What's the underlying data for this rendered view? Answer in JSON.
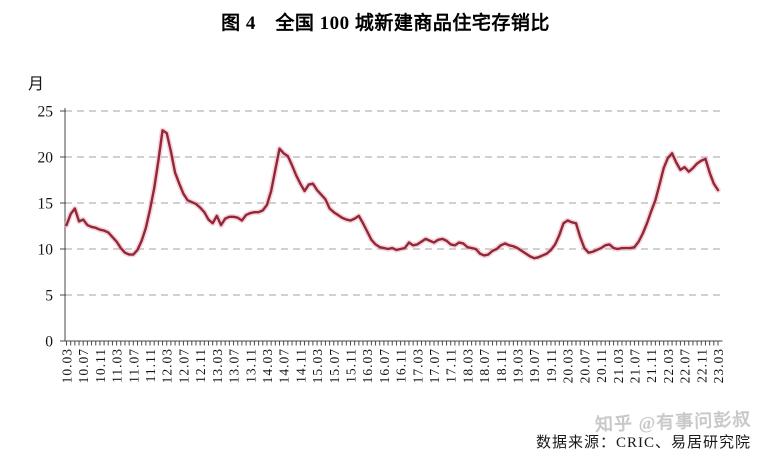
{
  "figure": {
    "title": "图 4　全国 100 城新建商品住宅存销比",
    "y_unit_label": "月",
    "source_note": "数据来源：CRIC、易居研究院",
    "watermark": "知乎 @有事问彭叔"
  },
  "colors": {
    "line": "#93273a",
    "line_halo": "#ecaab5",
    "grid": "#a3a3a3",
    "axis": "#4a4a4a",
    "tick_label": "#141414",
    "watermark": "#c9c9c9",
    "background": "#ffffff"
  },
  "chart_data": {
    "type": "line",
    "title": "图 4　全国 100 城新建商品住宅存销比",
    "xlabel": "",
    "ylabel": "月",
    "ylim": [
      0,
      25
    ],
    "yticks": [
      0,
      5,
      10,
      15,
      20,
      25
    ],
    "xtick_label_every": 4,
    "grid": "horizontal-dashed",
    "legend_position": "none",
    "series_name": "全国100城新建商品住宅存销比（月）",
    "x": [
      "10.03",
      "10.04",
      "10.05",
      "10.06",
      "10.07",
      "10.08",
      "10.09",
      "10.10",
      "10.11",
      "10.12",
      "11.01",
      "11.02",
      "11.03",
      "11.04",
      "11.05",
      "11.06",
      "11.07",
      "11.08",
      "11.09",
      "11.10",
      "11.11",
      "11.12",
      "12.01",
      "12.02",
      "12.03",
      "12.04",
      "12.05",
      "12.06",
      "12.07",
      "12.08",
      "12.09",
      "12.10",
      "12.11",
      "12.12",
      "13.01",
      "13.02",
      "13.03",
      "13.04",
      "13.05",
      "13.06",
      "13.07",
      "13.08",
      "13.09",
      "13.10",
      "13.11",
      "13.12",
      "14.01",
      "14.02",
      "14.03",
      "14.04",
      "14.05",
      "14.06",
      "14.07",
      "14.08",
      "14.09",
      "14.10",
      "14.11",
      "14.12",
      "15.01",
      "15.02",
      "15.03",
      "15.04",
      "15.05",
      "15.06",
      "15.07",
      "15.08",
      "15.09",
      "15.10",
      "15.11",
      "15.12",
      "16.01",
      "16.02",
      "16.03",
      "16.04",
      "16.05",
      "16.06",
      "16.07",
      "16.08",
      "16.09",
      "16.10",
      "16.11",
      "16.12",
      "17.01",
      "17.02",
      "17.03",
      "17.04",
      "17.05",
      "17.06",
      "17.07",
      "17.08",
      "17.09",
      "17.10",
      "17.11",
      "17.12",
      "18.01",
      "18.02",
      "18.03",
      "18.04",
      "18.05",
      "18.06",
      "18.07",
      "18.08",
      "18.09",
      "18.10",
      "18.11",
      "18.12",
      "19.01",
      "19.02",
      "19.03",
      "19.04",
      "19.05",
      "19.06",
      "19.07",
      "19.08",
      "19.09",
      "19.10",
      "19.11",
      "19.12",
      "20.01",
      "20.02",
      "20.03",
      "20.04",
      "20.05",
      "20.06",
      "20.07",
      "20.08",
      "20.09",
      "20.10",
      "20.11",
      "20.12",
      "21.01",
      "21.02",
      "21.03",
      "21.04",
      "21.05",
      "21.06",
      "21.07",
      "21.08",
      "21.09",
      "21.10",
      "21.11",
      "21.12",
      "22.01",
      "22.02",
      "22.03",
      "22.04",
      "22.05",
      "22.06",
      "22.07",
      "22.08",
      "22.09",
      "22.10",
      "22.11",
      "22.12",
      "23.01",
      "23.02",
      "23.03"
    ],
    "values": [
      12.6,
      13.8,
      14.4,
      13.0,
      13.2,
      12.6,
      12.4,
      12.3,
      12.1,
      12.0,
      11.8,
      11.3,
      10.8,
      10.1,
      9.6,
      9.4,
      9.4,
      9.9,
      10.9,
      12.3,
      14.3,
      16.6,
      19.6,
      22.9,
      22.6,
      20.6,
      18.3,
      17.1,
      16.0,
      15.3,
      15.1,
      14.9,
      14.5,
      14.0,
      13.2,
      12.8,
      13.6,
      12.6,
      13.3,
      13.5,
      13.5,
      13.4,
      13.1,
      13.7,
      13.9,
      14.0,
      14.0,
      14.2,
      14.8,
      16.3,
      18.6,
      20.9,
      20.4,
      20.1,
      19.1,
      18.0,
      17.1,
      16.3,
      17.0,
      17.1,
      16.4,
      15.9,
      15.4,
      14.4,
      14.0,
      13.7,
      13.4,
      13.2,
      13.1,
      13.3,
      13.6,
      12.8,
      11.9,
      11.0,
      10.5,
      10.2,
      10.1,
      10.0,
      10.1,
      9.9,
      10.0,
      10.1,
      10.7,
      10.4,
      10.5,
      10.8,
      11.1,
      10.9,
      10.7,
      11.0,
      11.1,
      10.9,
      10.5,
      10.4,
      10.7,
      10.6,
      10.2,
      10.1,
      10.0,
      9.5,
      9.3,
      9.4,
      9.8,
      10.0,
      10.4,
      10.6,
      10.4,
      10.3,
      10.1,
      9.8,
      9.5,
      9.2,
      9.0,
      9.1,
      9.3,
      9.5,
      9.9,
      10.5,
      11.5,
      12.8,
      13.1,
      12.9,
      12.8,
      11.3,
      10.1,
      9.6,
      9.7,
      9.9,
      10.1,
      10.4,
      10.5,
      10.1,
      10.0,
      10.1,
      10.1,
      10.1,
      10.2,
      10.8,
      11.7,
      12.8,
      14.1,
      15.3,
      17.0,
      18.8,
      19.9,
      20.4,
      19.4,
      18.6,
      18.9,
      18.4,
      18.8,
      19.3,
      19.6,
      19.8,
      18.3,
      17.1,
      16.4
    ]
  }
}
